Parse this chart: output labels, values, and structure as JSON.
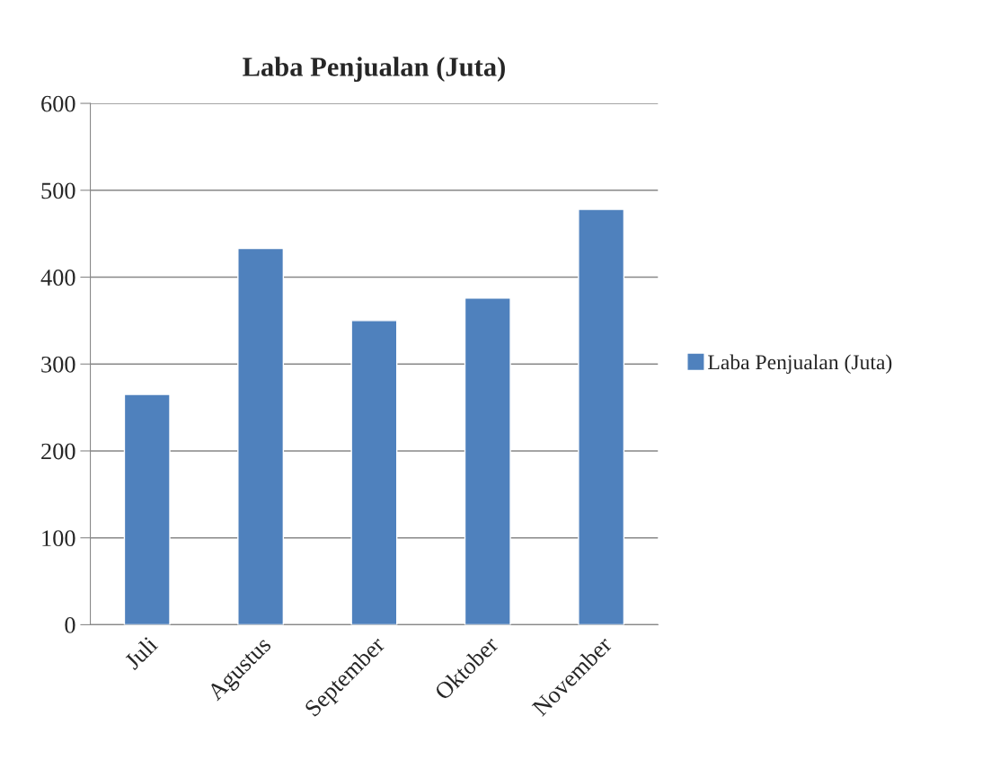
{
  "chart_data": {
    "type": "bar",
    "title": "Laba Penjualan (Juta)",
    "categories": [
      "Juli",
      "Agustus",
      "September",
      "Oktober",
      "November"
    ],
    "series": [
      {
        "name": "Laba Penjualan (Juta)",
        "color": "#4f81bd",
        "values": [
          265,
          433,
          350,
          376,
          478
        ]
      }
    ],
    "ylim": [
      0,
      600
    ],
    "yticks": [
      0,
      100,
      200,
      300,
      400,
      500,
      600
    ],
    "grid": "y",
    "legend": "right"
  }
}
